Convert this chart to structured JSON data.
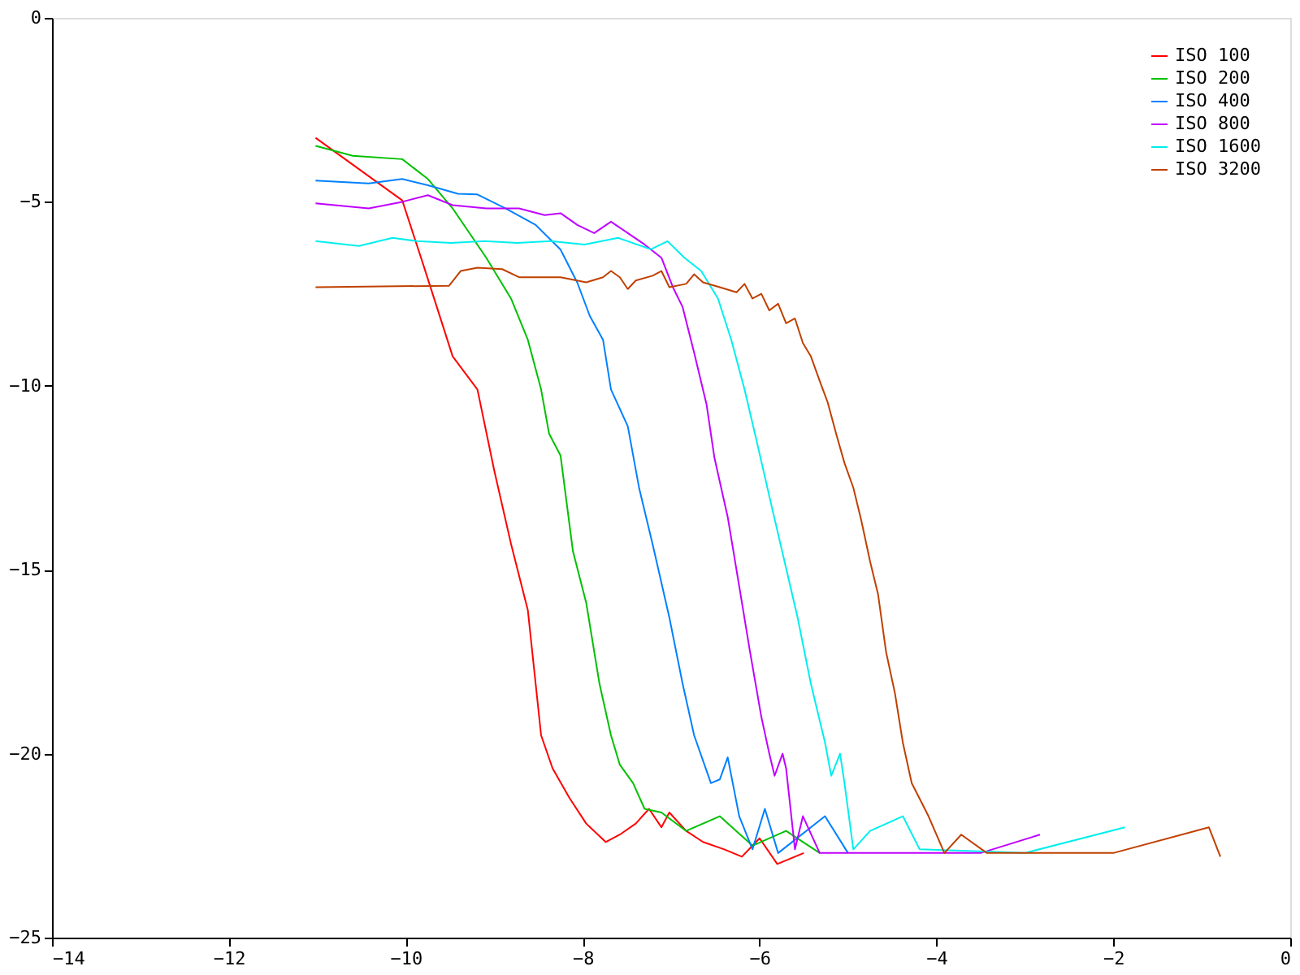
{
  "chart_data": {
    "type": "line",
    "xlim": [
      -14,
      0
    ],
    "ylim": [
      -25,
      0
    ],
    "xticks": [
      -14,
      -12,
      -10,
      -8,
      -6,
      -4,
      -2,
      0
    ],
    "yticks": [
      -25,
      -20,
      -15,
      -10,
      -5,
      0
    ],
    "grid": false,
    "legend": "top right",
    "marker": "none",
    "line_style": "solid",
    "series": [
      {
        "name": "ISO 100",
        "color": "#ff0000",
        "x": [
          -11.02,
          -10.04,
          -9.81,
          -9.47,
          -9.19,
          -9.0,
          -8.81,
          -8.62,
          -8.47,
          -8.34,
          -8.15,
          -7.96,
          -7.74,
          -7.58,
          -7.4,
          -7.25,
          -7.11,
          -7.02,
          -6.83,
          -6.64,
          -6.4,
          -6.2,
          -6.0,
          -5.8,
          -5.5
        ],
        "values": [
          -3.26,
          -4.96,
          -6.65,
          -9.2,
          -10.1,
          -12.3,
          -14.3,
          -16.1,
          -19.5,
          -20.4,
          -21.2,
          -21.9,
          -22.4,
          -22.2,
          -21.9,
          -21.5,
          -22.0,
          -21.6,
          -22.1,
          -22.4,
          -22.6,
          -22.8,
          -22.3,
          -23.0,
          -22.7
        ]
      },
      {
        "name": "ISO 200",
        "color": "#00c000",
        "x": [
          -11.02,
          -10.6,
          -10.04,
          -9.75,
          -9.47,
          -9.09,
          -8.81,
          -8.62,
          -8.47,
          -8.38,
          -8.25,
          -8.11,
          -7.96,
          -7.81,
          -7.68,
          -7.58,
          -7.43,
          -7.3,
          -7.11,
          -6.83,
          -6.45,
          -6.08,
          -5.7,
          -5.32
        ],
        "values": [
          -3.48,
          -3.75,
          -3.84,
          -4.38,
          -5.18,
          -6.52,
          -7.63,
          -8.75,
          -10.1,
          -11.3,
          -11.9,
          -14.5,
          -15.9,
          -18.1,
          -19.5,
          -20.3,
          -20.8,
          -21.5,
          -21.6,
          -22.1,
          -21.7,
          -22.5,
          -22.1,
          -22.7
        ]
      },
      {
        "name": "ISO 400",
        "color": "#0080ff",
        "x": [
          -11.02,
          -10.42,
          -10.04,
          -9.75,
          -9.41,
          -9.19,
          -8.87,
          -8.53,
          -8.25,
          -8.06,
          -7.92,
          -7.77,
          -7.68,
          -7.49,
          -7.36,
          -7.21,
          -7.02,
          -6.87,
          -6.74,
          -6.55,
          -6.45,
          -6.36,
          -6.23,
          -6.08,
          -5.94,
          -5.79,
          -5.26,
          -5.0
        ],
        "values": [
          -4.42,
          -4.5,
          -4.38,
          -4.55,
          -4.78,
          -4.8,
          -5.18,
          -5.63,
          -6.3,
          -7.2,
          -8.1,
          -8.75,
          -10.1,
          -11.1,
          -12.8,
          -14.3,
          -16.3,
          -18.1,
          -19.5,
          -20.8,
          -20.7,
          -20.1,
          -21.7,
          -22.6,
          -21.5,
          -22.7,
          -21.7,
          -22.7
        ]
      },
      {
        "name": "ISO 800",
        "color": "#c000ff",
        "x": [
          -11.02,
          -10.42,
          -10.04,
          -9.75,
          -9.47,
          -9.09,
          -8.72,
          -8.43,
          -8.25,
          -8.06,
          -7.87,
          -7.68,
          -7.49,
          -7.3,
          -7.11,
          -6.98,
          -6.87,
          -6.74,
          -6.6,
          -6.51,
          -6.36,
          -6.23,
          -6.11,
          -5.98,
          -5.89,
          -5.83,
          -5.74,
          -5.7,
          -5.6,
          -5.51,
          -5.32,
          -4.5,
          -3.5,
          -2.83
        ],
        "values": [
          -5.04,
          -5.18,
          -5.0,
          -4.82,
          -5.09,
          -5.18,
          -5.18,
          -5.36,
          -5.31,
          -5.63,
          -5.85,
          -5.54,
          -5.85,
          -6.16,
          -6.52,
          -7.32,
          -7.86,
          -9.1,
          -10.5,
          -11.96,
          -13.57,
          -15.45,
          -17.2,
          -19.0,
          -20.0,
          -20.6,
          -20.0,
          -20.4,
          -22.6,
          -21.7,
          -22.7,
          -22.7,
          -22.7,
          -22.2
        ]
      },
      {
        "name": "ISO 1600",
        "color": "#00eeee",
        "x": [
          -11.02,
          -10.53,
          -10.15,
          -9.87,
          -9.49,
          -9.11,
          -8.74,
          -8.36,
          -7.98,
          -7.6,
          -7.23,
          -7.04,
          -6.85,
          -6.66,
          -6.47,
          -6.32,
          -6.17,
          -6.04,
          -5.89,
          -5.74,
          -5.57,
          -5.42,
          -5.26,
          -5.19,
          -5.09,
          -5.04,
          -4.94,
          -4.75,
          -4.38,
          -4.19,
          -3.0,
          -1.87
        ],
        "values": [
          -6.07,
          -6.2,
          -5.98,
          -6.07,
          -6.12,
          -6.07,
          -6.12,
          -6.07,
          -6.16,
          -5.98,
          -6.29,
          -6.07,
          -6.52,
          -6.88,
          -7.63,
          -8.75,
          -10.1,
          -11.43,
          -13.0,
          -14.55,
          -16.3,
          -18.1,
          -19.7,
          -20.6,
          -20.0,
          -20.8,
          -22.6,
          -22.1,
          -21.7,
          -22.6,
          -22.7,
          -22.0
        ]
      },
      {
        "name": "ISO 3200",
        "color": "#c04000",
        "x": [
          -11.02,
          -9.51,
          -9.38,
          -9.19,
          -8.91,
          -8.72,
          -8.25,
          -7.96,
          -7.77,
          -7.68,
          -7.58,
          -7.49,
          -7.4,
          -7.21,
          -7.11,
          -7.02,
          -6.83,
          -6.74,
          -6.64,
          -6.45,
          -6.26,
          -6.17,
          -6.08,
          -5.98,
          -5.89,
          -5.79,
          -5.7,
          -5.6,
          -5.51,
          -5.42,
          -5.32,
          -5.23,
          -5.13,
          -5.04,
          -4.94,
          -4.85,
          -4.75,
          -4.66,
          -4.57,
          -4.47,
          -4.38,
          -4.28,
          -4.09,
          -3.91,
          -3.72,
          -3.43,
          -2.0,
          -0.92,
          -0.79
        ],
        "values": [
          -7.32,
          -7.28,
          -6.88,
          -6.79,
          -6.83,
          -7.05,
          -7.05,
          -7.19,
          -7.05,
          -6.88,
          -7.05,
          -7.37,
          -7.14,
          -7.01,
          -6.88,
          -7.32,
          -7.23,
          -6.97,
          -7.19,
          -7.32,
          -7.46,
          -7.23,
          -7.63,
          -7.5,
          -7.95,
          -7.77,
          -8.3,
          -8.17,
          -8.84,
          -9.2,
          -9.87,
          -10.45,
          -11.34,
          -12.1,
          -12.77,
          -13.66,
          -14.78,
          -15.67,
          -17.23,
          -18.35,
          -19.7,
          -20.8,
          -21.7,
          -22.7,
          -22.2,
          -22.7,
          -22.7,
          -22.0,
          -22.8
        ]
      }
    ]
  }
}
